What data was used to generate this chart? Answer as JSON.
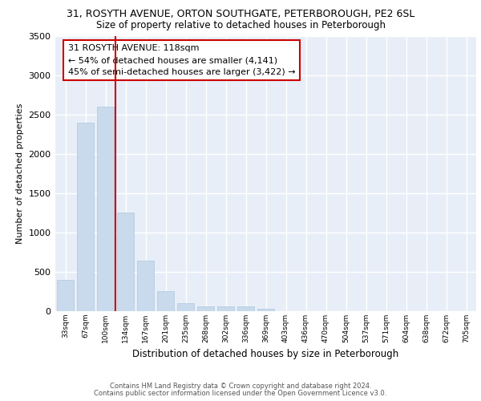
{
  "title_line1": "31, ROSYTH AVENUE, ORTON SOUTHGATE, PETERBOROUGH, PE2 6SL",
  "title_line2": "Size of property relative to detached houses in Peterborough",
  "xlabel": "Distribution of detached houses by size in Peterborough",
  "ylabel": "Number of detached properties",
  "annotation_line1": "31 ROSYTH AVENUE: 118sqm",
  "annotation_line2": "← 54% of detached houses are smaller (4,141)",
  "annotation_line3": "45% of semi-detached houses are larger (3,422) →",
  "categories": [
    "33sqm",
    "67sqm",
    "100sqm",
    "134sqm",
    "167sqm",
    "201sqm",
    "235sqm",
    "268sqm",
    "302sqm",
    "336sqm",
    "369sqm",
    "403sqm",
    "436sqm",
    "470sqm",
    "504sqm",
    "537sqm",
    "571sqm",
    "604sqm",
    "638sqm",
    "672sqm",
    "705sqm"
  ],
  "values": [
    390,
    2400,
    2600,
    1250,
    640,
    255,
    100,
    55,
    55,
    55,
    30,
    0,
    0,
    0,
    0,
    0,
    0,
    0,
    0,
    0,
    0
  ],
  "bar_color": "#c8daec",
  "bar_edge_color": "#b0c8e0",
  "vline_color": "#cc0000",
  "vline_x": 2.5,
  "ylim": [
    0,
    3500
  ],
  "yticks": [
    0,
    500,
    1000,
    1500,
    2000,
    2500,
    3000,
    3500
  ],
  "bg_color": "#e8eef8",
  "grid_color": "#ffffff",
  "footer_line1": "Contains HM Land Registry data © Crown copyright and database right 2024.",
  "footer_line2": "Contains public sector information licensed under the Open Government Licence v3.0."
}
